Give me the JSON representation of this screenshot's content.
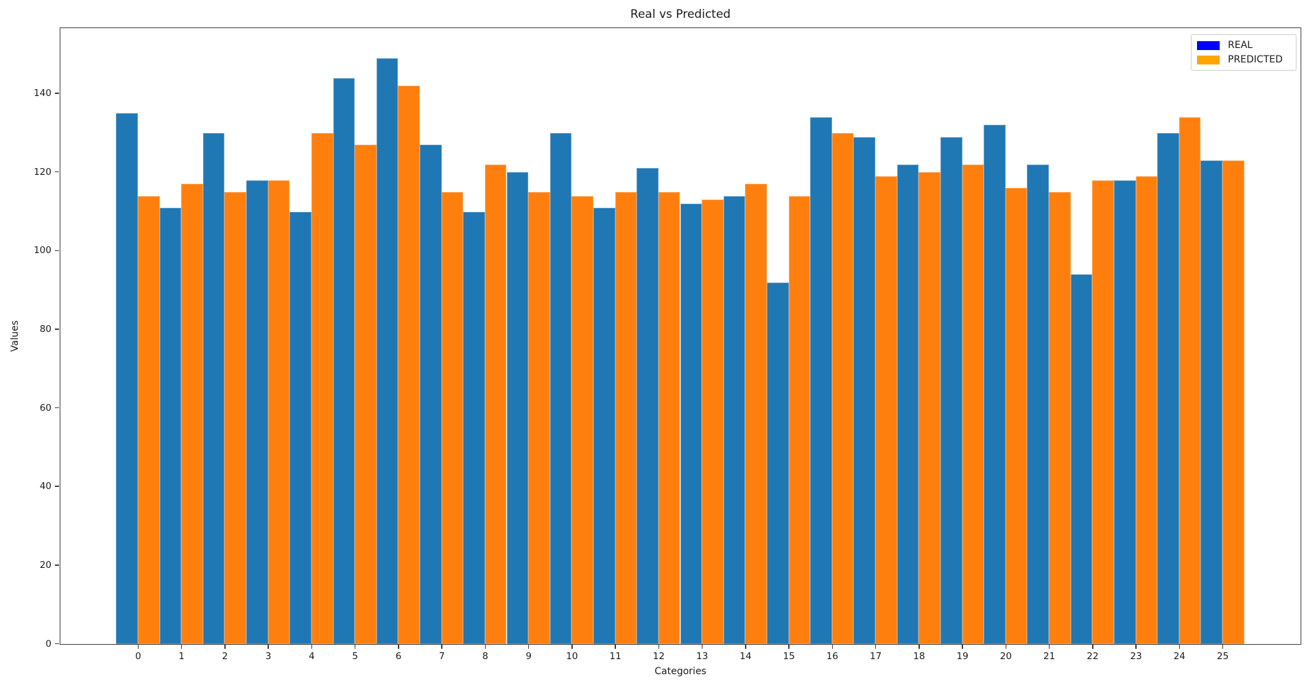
{
  "figure": {
    "title": "Real vs Predicted",
    "xlabel": "Categories",
    "ylabel": "Values"
  },
  "legend": {
    "items": [
      {
        "label": "REAL",
        "swatch_color": "#0000ff"
      },
      {
        "label": "PREDICTED",
        "swatch_color": "#ffa500"
      }
    ]
  },
  "chart_data": {
    "type": "bar",
    "title": "Real vs Predicted",
    "xlabel": "Categories",
    "ylabel": "Values",
    "categories": [
      "0",
      "1",
      "2",
      "3",
      "4",
      "5",
      "6",
      "7",
      "8",
      "9",
      "10",
      "11",
      "12",
      "13",
      "14",
      "15",
      "16",
      "17",
      "18",
      "19",
      "20",
      "21",
      "22",
      "23",
      "24",
      "25"
    ],
    "series": [
      {
        "name": "REAL",
        "color": "#1f77b4",
        "values": [
          135,
          111,
          130,
          118,
          110,
          144,
          149,
          127,
          110,
          120,
          130,
          111,
          121,
          112,
          114,
          92,
          134,
          129,
          122,
          129,
          132,
          122,
          94,
          118,
          130,
          123
        ]
      },
      {
        "name": "PREDICTED",
        "color": "#ff7f0e",
        "values": [
          114,
          117,
          115,
          118,
          130,
          127,
          142,
          115,
          122,
          115,
          114,
          115,
          115,
          113,
          117,
          114,
          130,
          119,
          120,
          122,
          116,
          115,
          118,
          119,
          134,
          123
        ]
      }
    ],
    "ylim": [
      0,
      156.5
    ],
    "yticks": [
      0,
      20,
      40,
      60,
      80,
      100,
      120,
      140
    ],
    "bar_width": 0.5,
    "legend_position": "upper right",
    "grid": false
  }
}
